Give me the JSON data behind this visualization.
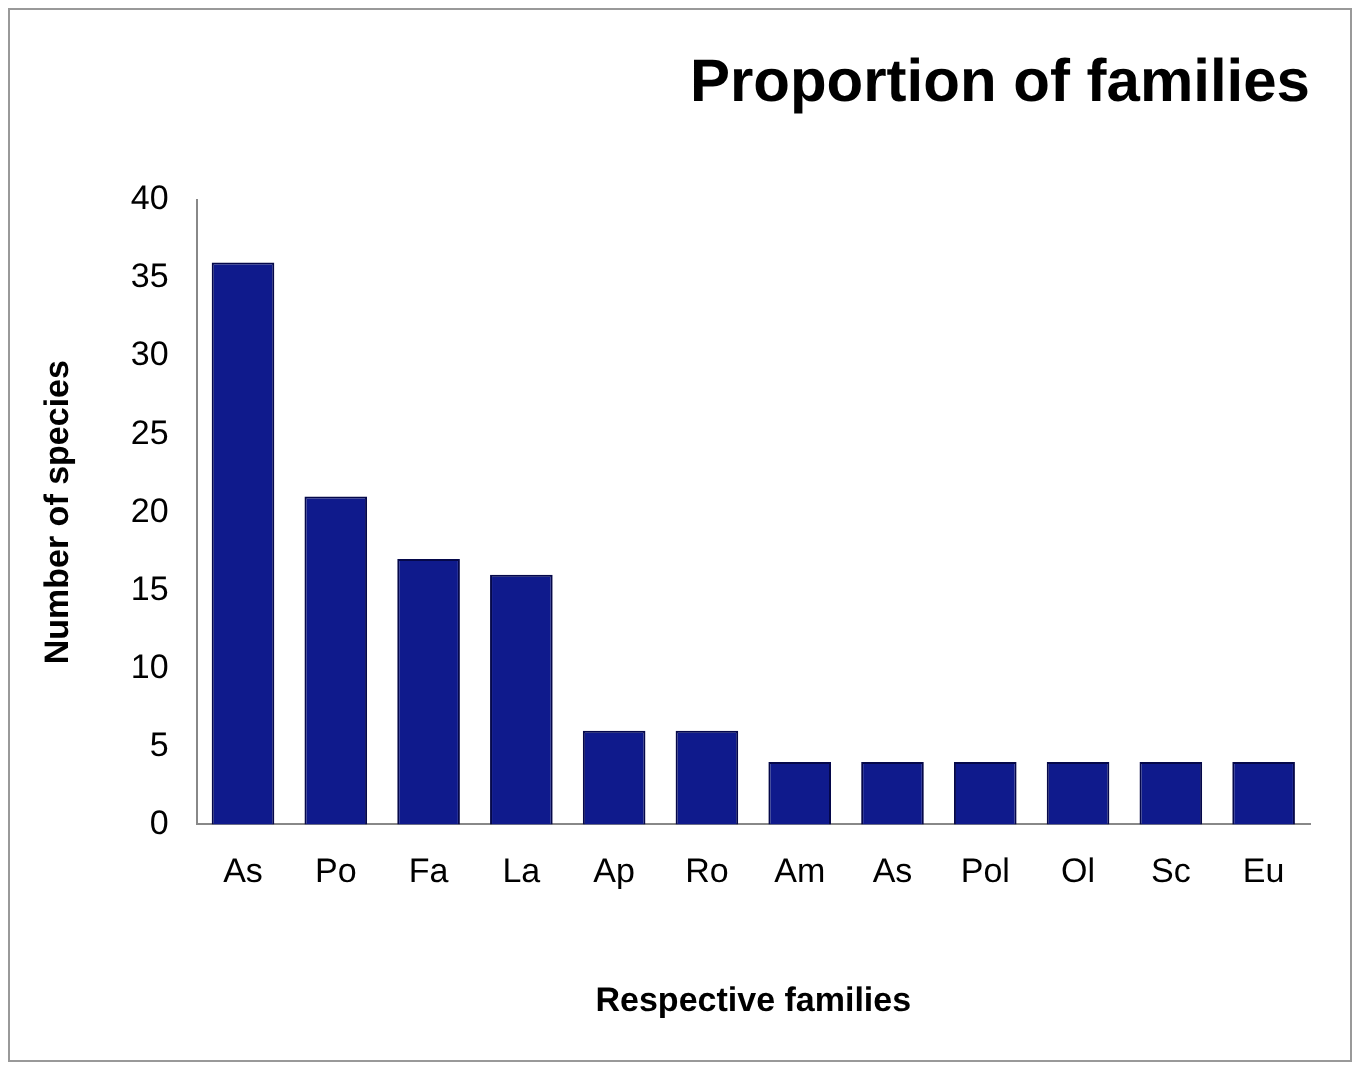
{
  "chart_data": {
    "type": "bar",
    "title": "Proportion of families",
    "xlabel": "Respective families",
    "ylabel": "Number of species",
    "categories": [
      "As",
      "Po",
      "Fa",
      "La",
      "Ap",
      "Ro",
      "Am",
      "As",
      "Pol",
      "Ol",
      "Sc",
      "Eu"
    ],
    "values": [
      36,
      21,
      17,
      16,
      6,
      6,
      4,
      4,
      4,
      4,
      4,
      4
    ],
    "color": "#0f1a8c",
    "ylim": [
      0,
      40
    ],
    "yticks": [
      0,
      5,
      10,
      15,
      20,
      25,
      30,
      35,
      40
    ],
    "grid": false,
    "legend": false
  }
}
